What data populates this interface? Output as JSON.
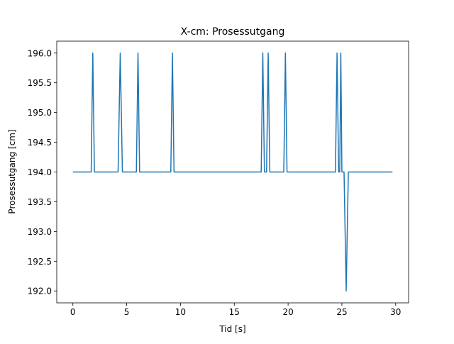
{
  "chart_data": {
    "type": "line",
    "title": "X-cm: Prosessutgang",
    "xlabel": "Tid [s]",
    "ylabel": "Prosessutgang [cm]",
    "xlim": [
      -1.5,
      31.2
    ],
    "ylim": [
      191.8,
      196.2
    ],
    "xticks": [
      0,
      5,
      10,
      15,
      20,
      25,
      30
    ],
    "xtick_labels": [
      "0",
      "5",
      "10",
      "15",
      "20",
      "25",
      "30"
    ],
    "yticks": [
      192.0,
      192.5,
      193.0,
      193.5,
      194.0,
      194.5,
      195.0,
      195.5,
      196.0
    ],
    "ytick_labels": [
      "192.0",
      "192.5",
      "193.0",
      "193.5",
      "194.0",
      "194.5",
      "195.0",
      "195.5",
      "196.0"
    ],
    "grid": false,
    "series": [
      {
        "color": "#1f77b4",
        "x": [
          0.0,
          1.7,
          1.85,
          2.0,
          4.2,
          4.4,
          4.6,
          5.9,
          6.05,
          6.2,
          9.1,
          9.25,
          9.4,
          17.5,
          17.65,
          17.8,
          18.0,
          18.15,
          18.3,
          19.6,
          19.75,
          19.9,
          24.4,
          24.55,
          24.7,
          24.8,
          24.9,
          25.0,
          25.2,
          25.4,
          25.6,
          29.7
        ],
        "y": [
          194.0,
          194.0,
          196.0,
          194.0,
          194.0,
          196.0,
          194.0,
          194.0,
          196.0,
          194.0,
          194.0,
          196.0,
          194.0,
          194.0,
          196.0,
          194.0,
          194.0,
          196.0,
          194.0,
          194.0,
          196.0,
          194.0,
          194.0,
          196.0,
          194.0,
          194.0,
          196.0,
          194.0,
          194.0,
          192.0,
          194.0,
          194.0
        ]
      }
    ]
  }
}
